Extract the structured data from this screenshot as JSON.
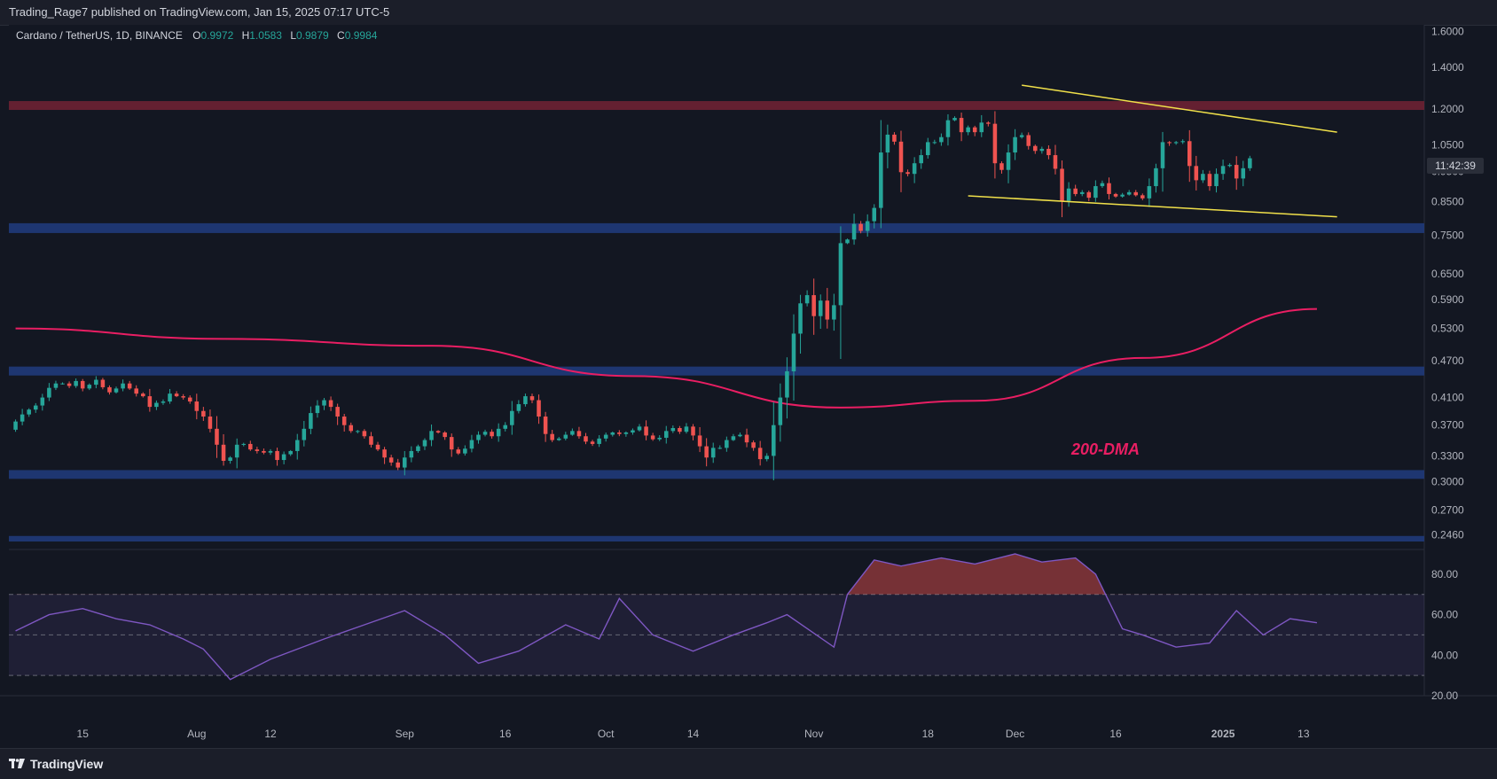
{
  "header": {
    "publish_text": "Trading_Rage7 published on TradingView.com, Jan 15, 2025 07:17 UTC-5"
  },
  "legend": {
    "symbol": "Cardano / TetherUS, 1D, BINANCE",
    "o_label": "O",
    "o_value": "0.9972",
    "h_label": "H",
    "h_value": "1.0583",
    "l_label": "L",
    "l_value": "0.9879",
    "c_label": "C",
    "c_value": "0.9984"
  },
  "countdown": "11:42:39",
  "annotation": "200-DMA",
  "footer": {
    "brand": "TradingView"
  },
  "colors": {
    "background": "#131722",
    "up": "#26a69a",
    "down": "#ef5350",
    "dma": "#e91e63",
    "wedge": "#f0e04a",
    "support_zone": "#1f3a78",
    "resistance_zone": "#6b2233",
    "rsi": "#7e57c2"
  },
  "chart_data": [
    {
      "type": "candlestick",
      "title": "Cardano / TetherUS, 1D, BINANCE",
      "x_ticks": [
        "15",
        "Aug",
        "12",
        "Sep",
        "16",
        "Oct",
        "14",
        "Nov",
        "18",
        "Dec",
        "16",
        "2025",
        "13"
      ],
      "y_ticks": [
        "1.6000",
        "1.4000",
        "1.2000",
        "1.0500",
        "0.9500",
        "0.8500",
        "0.7500",
        "0.6500",
        "0.5900",
        "0.5300",
        "0.4700",
        "0.4100",
        "0.3700",
        "0.3300",
        "0.3000",
        "0.2700",
        "0.2460"
      ],
      "y_scale": "log",
      "ylim": [
        0.233,
        1.64
      ],
      "start_date": "2024-07-05",
      "end_date": "2025-01-15",
      "close": [
        0.375,
        0.385,
        0.392,
        0.398,
        0.41,
        0.425,
        0.432,
        0.432,
        0.428,
        0.436,
        0.424,
        0.43,
        0.438,
        0.426,
        0.418,
        0.424,
        0.432,
        0.424,
        0.416,
        0.412,
        0.396,
        0.402,
        0.404,
        0.416,
        0.412,
        0.41,
        0.404,
        0.39,
        0.382,
        0.365,
        0.344,
        0.324,
        0.328,
        0.344,
        0.345,
        0.338,
        0.336,
        0.334,
        0.336,
        0.325,
        0.332,
        0.336,
        0.35,
        0.365,
        0.387,
        0.398,
        0.406,
        0.396,
        0.382,
        0.37,
        0.362,
        0.362,
        0.355,
        0.344,
        0.338,
        0.328,
        0.322,
        0.316,
        0.328,
        0.336,
        0.342,
        0.35,
        0.362,
        0.36,
        0.354,
        0.338,
        0.333,
        0.339,
        0.35,
        0.357,
        0.361,
        0.355,
        0.365,
        0.37,
        0.39,
        0.4,
        0.412,
        0.406,
        0.382,
        0.358,
        0.35,
        0.352,
        0.357,
        0.362,
        0.355,
        0.348,
        0.345,
        0.352,
        0.357,
        0.36,
        0.358,
        0.36,
        0.363,
        0.368,
        0.356,
        0.351,
        0.353,
        0.362,
        0.366,
        0.361,
        0.368,
        0.356,
        0.342,
        0.328,
        0.34,
        0.34,
        0.35,
        0.355,
        0.357,
        0.347,
        0.34,
        0.326,
        0.33,
        0.37,
        0.41,
        0.452,
        0.52,
        0.582,
        0.6,
        0.555,
        0.588,
        0.548,
        0.578,
        0.728,
        0.738,
        0.782,
        0.762,
        0.79,
        0.83,
        1.02,
        1.09,
        1.062,
        0.948,
        0.942,
        0.98,
        1.01,
        1.06,
        1.06,
        1.08,
        1.15,
        1.16,
        1.1,
        1.12,
        1.1,
        1.14,
        1.135,
        0.98,
        0.956,
        1.02,
        1.08,
        1.088,
        1.045,
        1.026,
        1.034,
        1.01,
        0.96,
        0.852,
        0.892,
        0.874,
        0.88,
        0.862,
        0.9,
        0.91,
        0.874,
        0.866,
        0.872,
        0.88,
        0.87,
        0.86,
        0.9,
        0.962,
        1.06,
        1.056,
        1.06,
        1.064,
        0.97,
        0.92,
        0.942,
        0.9,
        0.942,
        0.97,
        0.974,
        0.926,
        0.962,
        0.9984
      ],
      "close_note": "daily closes in USDT, estimated from candles",
      "series": [
        {
          "name": "200-DMA",
          "points": [
            [
              "2024-07-05",
              0.53
            ],
            [
              "2024-08-05",
              0.51
            ],
            [
              "2024-09-05",
              0.497
            ],
            [
              "2024-10-05",
              0.444
            ],
            [
              "2024-11-05",
              0.395
            ],
            [
              "2024-11-25",
              0.405
            ],
            [
              "2024-12-20",
              0.475
            ],
            [
              "2025-01-15",
              0.57
            ]
          ]
        },
        {
          "name": "wedge-upper",
          "points": [
            [
              "2024-12-02",
              1.31
            ],
            [
              "2025-01-18",
              1.1
            ]
          ]
        },
        {
          "name": "wedge-lower",
          "points": [
            [
              "2024-11-24",
              0.868
            ],
            [
              "2025-01-18",
              0.803
            ]
          ]
        }
      ],
      "zones": [
        {
          "kind": "resistance",
          "y": [
            1.195,
            1.235
          ]
        },
        {
          "kind": "support",
          "y": [
            0.756,
            0.784
          ]
        },
        {
          "kind": "support",
          "y": [
            0.445,
            0.46
          ]
        },
        {
          "kind": "support",
          "y": [
            0.303,
            0.313
          ]
        },
        {
          "kind": "support",
          "y": [
            0.24,
            0.245
          ]
        }
      ],
      "current_price": 0.9984
    },
    {
      "type": "line",
      "title": "",
      "y_ticks": [
        "80.00",
        "60.00",
        "40.00",
        "20.00"
      ],
      "ylim": [
        20,
        90
      ],
      "levels": [
        70,
        50,
        30
      ],
      "x": [
        "2024-07-05",
        "2024-07-10",
        "2024-07-15",
        "2024-07-20",
        "2024-07-25",
        "2024-07-30",
        "2024-08-02",
        "2024-08-06",
        "2024-08-12",
        "2024-08-20",
        "2024-08-26",
        "2024-09-01",
        "2024-09-07",
        "2024-09-12",
        "2024-09-18",
        "2024-09-25",
        "2024-09-30",
        "2024-10-03",
        "2024-10-08",
        "2024-10-14",
        "2024-10-20",
        "2024-10-25",
        "2024-10-28",
        "2024-11-04",
        "2024-11-06",
        "2024-11-10",
        "2024-11-14",
        "2024-11-20",
        "2024-11-25",
        "2024-12-01",
        "2024-12-05",
        "2024-12-10",
        "2024-12-13",
        "2024-12-17",
        "2024-12-20",
        "2024-12-25",
        "2024-12-30",
        "2025-01-03",
        "2025-01-07",
        "2025-01-11",
        "2025-01-15"
      ],
      "values": [
        52,
        60,
        63,
        58,
        55,
        48,
        43,
        28,
        38,
        48,
        55,
        62,
        50,
        36,
        42,
        55,
        48,
        68,
        50,
        42,
        50,
        56,
        60,
        44,
        70,
        87,
        84,
        88,
        85,
        90,
        86,
        88,
        80,
        53,
        50,
        44,
        46,
        62,
        50,
        58,
        56
      ]
    }
  ]
}
